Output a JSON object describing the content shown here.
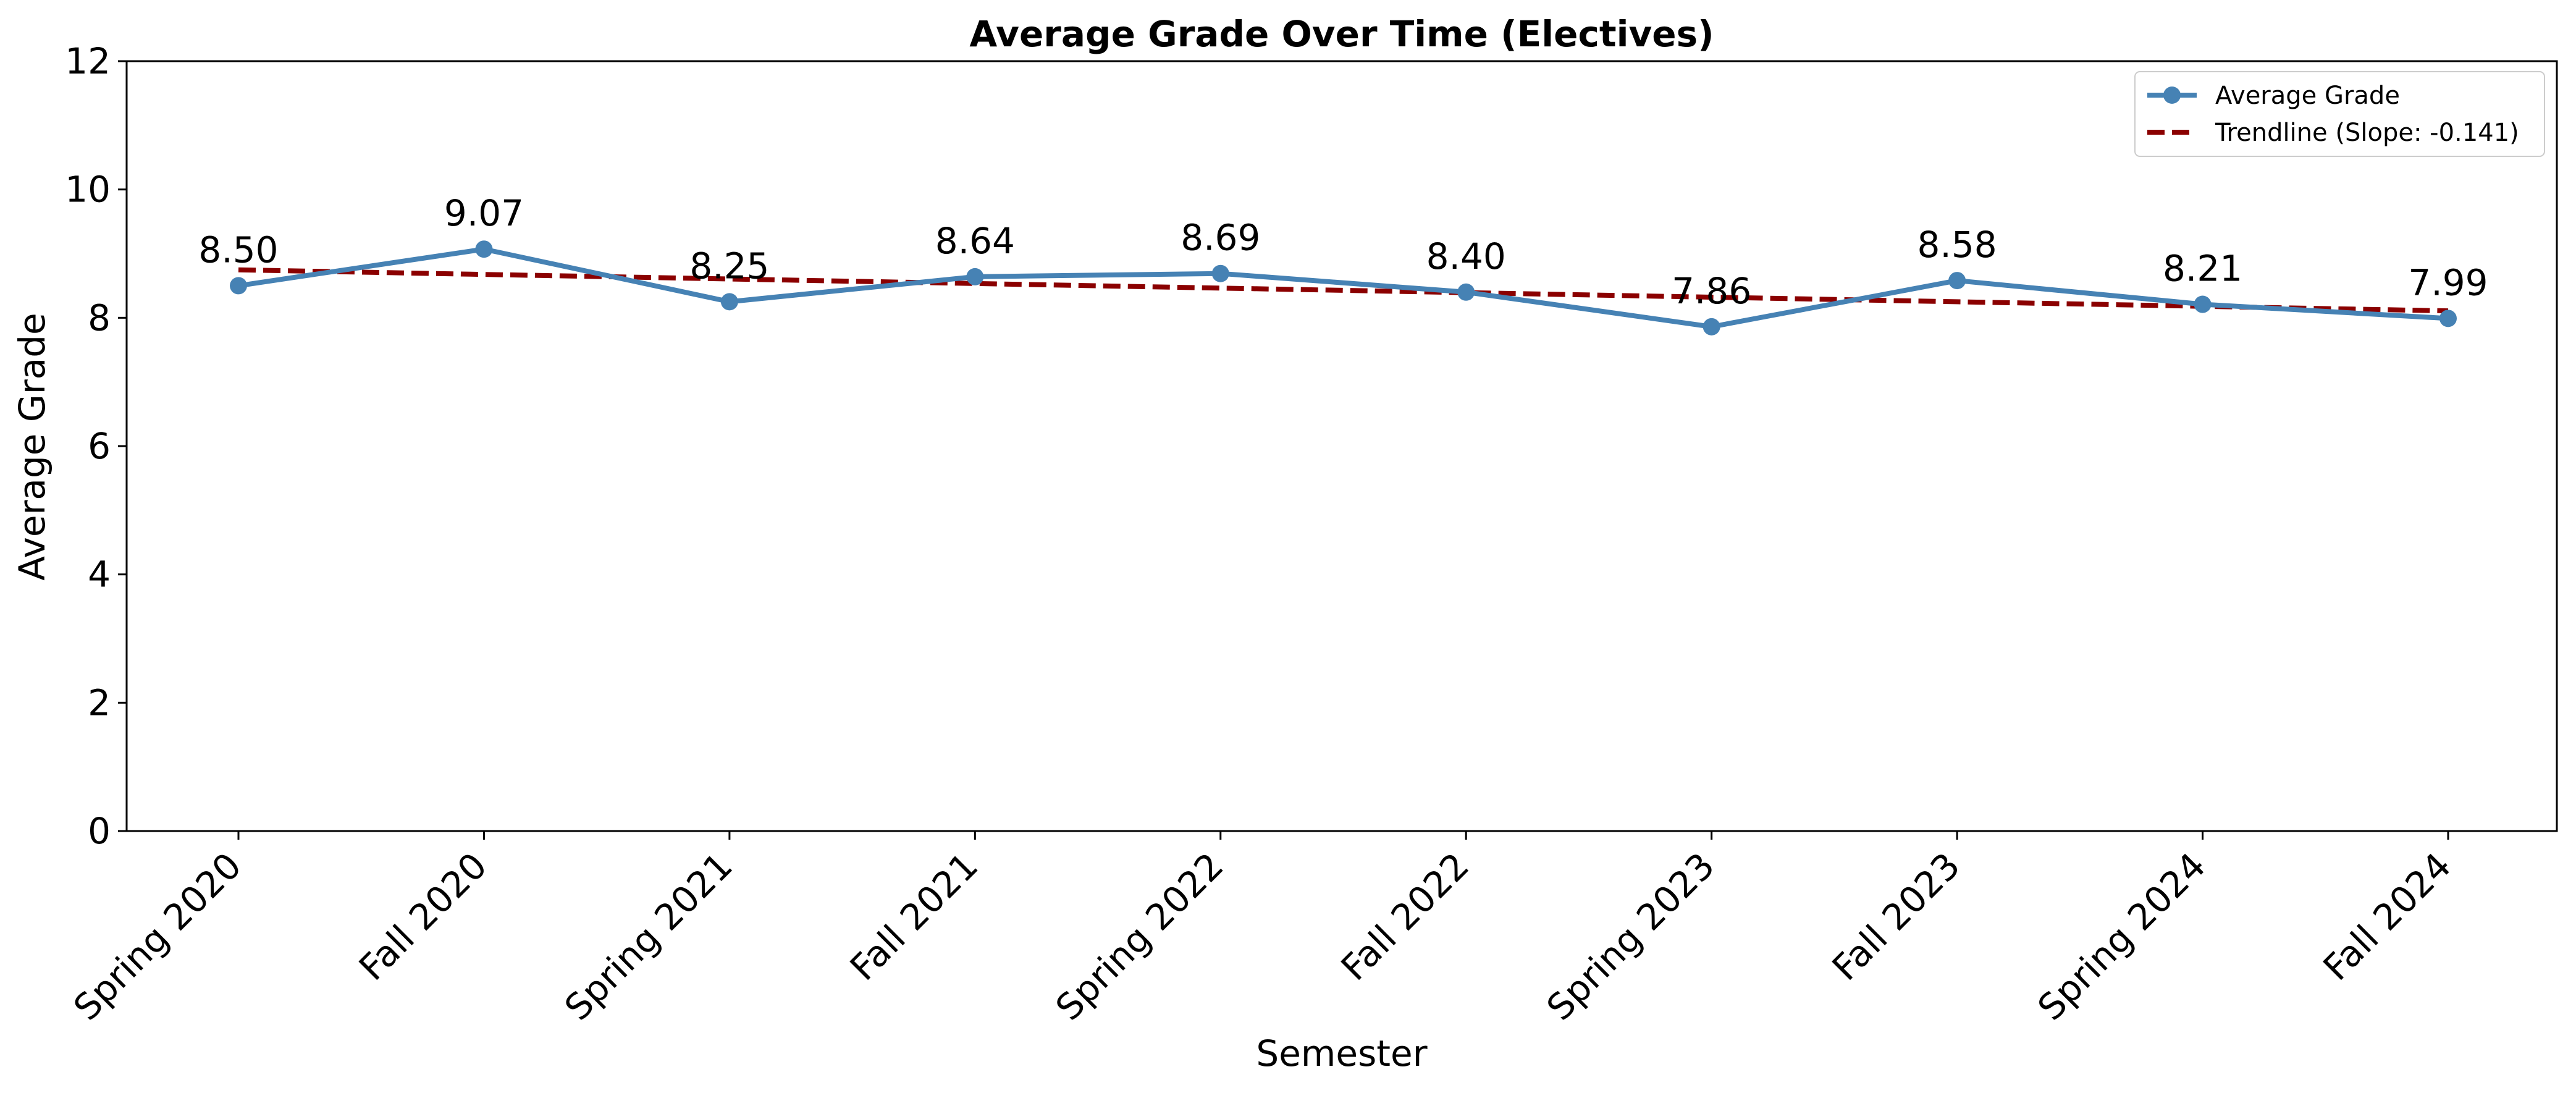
{
  "chart_data": {
    "type": "line",
    "title": "Average Grade Over Time (Electives)",
    "xlabel": "Semester",
    "ylabel": "Average Grade",
    "categories": [
      "Spring 2020",
      "Fall 2020",
      "Spring 2021",
      "Fall 2021",
      "Spring 2022",
      "Fall 2022",
      "Spring 2023",
      "Fall 2023",
      "Spring 2024",
      "Fall 2024"
    ],
    "ylim": [
      0,
      12
    ],
    "yticks": [
      0,
      2,
      4,
      6,
      8,
      10,
      12
    ],
    "grid": false,
    "legend_position": "top-right",
    "series": [
      {
        "name": "Average Grade",
        "style": "solid line with circle markers",
        "color": "#4682b4",
        "values": [
          8.5,
          9.07,
          8.25,
          8.64,
          8.69,
          8.4,
          7.86,
          8.58,
          8.21,
          7.99
        ],
        "data_labels": [
          "8.50",
          "9.07",
          "8.25",
          "8.64",
          "8.69",
          "8.40",
          "7.86",
          "8.58",
          "8.21",
          "7.99"
        ]
      },
      {
        "name": "Trendline (Slope: -0.141)",
        "style": "dashed line",
        "color": "#8b0000",
        "values": [
          8.747,
          8.676,
          8.605,
          8.534,
          8.463,
          8.392,
          8.321,
          8.25,
          8.179,
          8.108
        ]
      }
    ]
  }
}
